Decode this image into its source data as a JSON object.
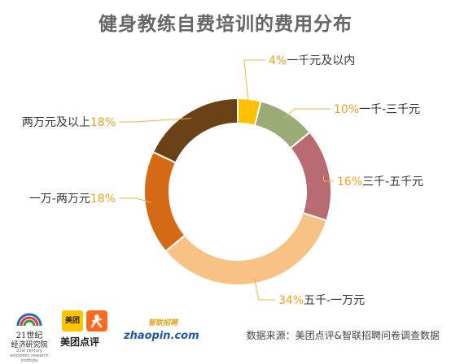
{
  "title": "健身教练自费培训的费用分布",
  "source": "数据来源：美团点评&智联招聘问卷调查数据",
  "logos": {
    "logo_21": {
      "line1": "21世纪",
      "line2": "经济研究院",
      "line3": "21st century economic research institute"
    },
    "meituan": {
      "badge": "美团",
      "name": "美团点评"
    },
    "zhaopin": {
      "cn": "智联招聘",
      "en": "zhaopin.com"
    }
  },
  "chart_data": {
    "type": "pie",
    "title": "健身教练自费培训的费用分布",
    "donut": true,
    "categories": [
      "一千元及以内",
      "一千-三千元",
      "三千-五千元",
      "五千-一万元",
      "一万-两万元",
      "两万元及以上"
    ],
    "values": [
      4,
      10,
      16,
      34,
      18,
      18
    ],
    "value_labels": [
      "4%",
      "10%",
      "16%",
      "34%",
      "18%",
      "18%"
    ],
    "colors": [
      "#ffc000",
      "#9bab75",
      "#b86b70",
      "#f8c285",
      "#d56a16",
      "#6b4216"
    ],
    "label_color": "#f0a020",
    "name_color": "#333333",
    "start_angle": "12 o'clock",
    "direction": "clockwise"
  }
}
